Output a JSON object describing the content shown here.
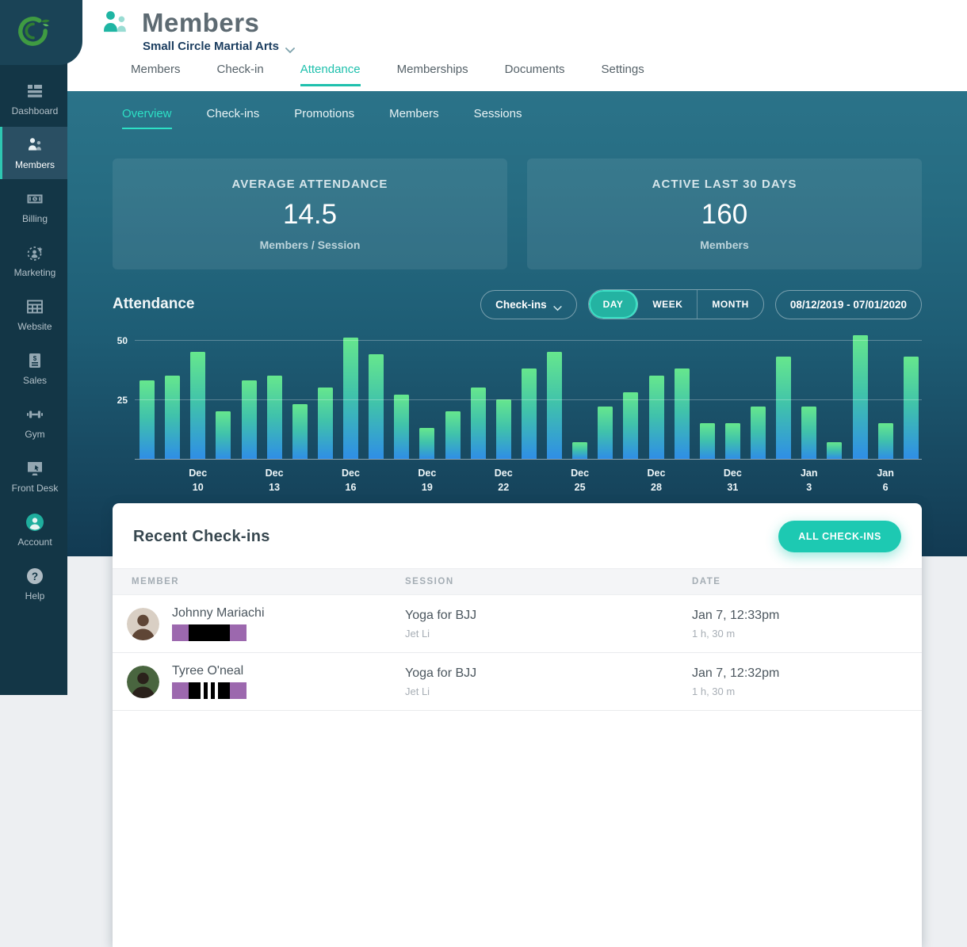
{
  "colors": {
    "accent_teal": "#1fc0ad",
    "button_teal": "#1dc9b2",
    "sidebar_bg": "#133646",
    "belt_purple": "#9c68ae",
    "bar_gradient": [
      "#66e78d",
      "#40c2ab",
      "#2f8ee6"
    ]
  },
  "sidebar": {
    "items": [
      {
        "label": "Dashboard",
        "icon": "dashboard-icon",
        "active": false
      },
      {
        "label": "Members",
        "icon": "members-icon",
        "active": true
      },
      {
        "label": "Billing",
        "icon": "billing-icon",
        "active": false
      },
      {
        "label": "Marketing",
        "icon": "marketing-icon",
        "active": false
      },
      {
        "label": "Website",
        "icon": "website-icon",
        "active": false
      },
      {
        "label": "Sales",
        "icon": "sales-icon",
        "active": false
      },
      {
        "label": "Gym",
        "icon": "gym-icon",
        "active": false
      },
      {
        "label": "Front Desk",
        "icon": "front-desk-icon",
        "active": false
      },
      {
        "label": "Account",
        "icon": "account-icon",
        "active": false
      },
      {
        "label": "Help",
        "icon": "help-icon",
        "active": false
      }
    ]
  },
  "header": {
    "title": "Members",
    "subtitle": "Small Circle Martial Arts",
    "tabs": [
      {
        "label": "Members",
        "active": false
      },
      {
        "label": "Check-in",
        "active": false
      },
      {
        "label": "Attendance",
        "active": true
      },
      {
        "label": "Memberships",
        "active": false
      },
      {
        "label": "Documents",
        "active": false
      },
      {
        "label": "Settings",
        "active": false
      }
    ]
  },
  "subtabs": [
    {
      "label": "Overview",
      "active": true
    },
    {
      "label": "Check-ins",
      "active": false
    },
    {
      "label": "Promotions",
      "active": false
    },
    {
      "label": "Members",
      "active": false
    },
    {
      "label": "Sessions",
      "active": false
    }
  ],
  "stats": [
    {
      "label": "AVERAGE ATTENDANCE",
      "value": "14.5",
      "unit": "Members / Session"
    },
    {
      "label": "ACTIVE LAST 30 DAYS",
      "value": "160",
      "unit": "Members"
    }
  ],
  "attendance_section": {
    "title": "Attendance",
    "metric_dropdown": "Check-ins",
    "periods": [
      "DAY",
      "WEEK",
      "MONTH"
    ],
    "active_period": "DAY",
    "date_range": "08/12/2019 - 07/01/2020"
  },
  "chart_data": {
    "type": "bar",
    "title": "Attendance — daily check-ins",
    "x": [
      "Dec 8",
      "Dec 9",
      "Dec 10",
      "Dec 11",
      "Dec 12",
      "Dec 13",
      "Dec 14",
      "Dec 15",
      "Dec 16",
      "Dec 17",
      "Dec 18",
      "Dec 19",
      "Dec 20",
      "Dec 21",
      "Dec 22",
      "Dec 23",
      "Dec 24",
      "Dec 25",
      "Dec 26",
      "Dec 27",
      "Dec 28",
      "Dec 29",
      "Dec 30",
      "Dec 31",
      "Jan 1",
      "Jan 2",
      "Jan 3",
      "Jan 4",
      "Jan 5",
      "Jan 6",
      "Jan 7"
    ],
    "values": [
      33,
      35,
      45,
      20,
      33,
      35,
      23,
      30,
      51,
      44,
      27,
      13,
      20,
      30,
      25,
      38,
      45,
      7,
      22,
      28,
      35,
      38,
      15,
      15,
      22,
      43,
      22,
      7,
      52,
      15,
      43
    ],
    "ticks": [
      {
        "i": 2,
        "label": "Dec\n10"
      },
      {
        "i": 5,
        "label": "Dec\n13"
      },
      {
        "i": 8,
        "label": "Dec\n16"
      },
      {
        "i": 11,
        "label": "Dec\n19"
      },
      {
        "i": 14,
        "label": "Dec\n22"
      },
      {
        "i": 17,
        "label": "Dec\n25"
      },
      {
        "i": 20,
        "label": "Dec\n28"
      },
      {
        "i": 23,
        "label": "Dec\n31"
      },
      {
        "i": 26,
        "label": "Jan 3"
      },
      {
        "i": 29,
        "label": "Jan 6"
      }
    ],
    "ylabel": "",
    "xlabel": "",
    "ylim": [
      0,
      55
    ],
    "yticks": [
      25,
      50
    ],
    "grid": true,
    "legend": false
  },
  "checkins": {
    "title": "Recent Check-ins",
    "button_label": "ALL CHECK-INS",
    "columns": [
      "MEMBER",
      "SESSION",
      "DATE"
    ],
    "rows": [
      {
        "name": "Johnny Mariachi",
        "belt_rank": "purple",
        "belt_stripes": 0,
        "session": "Yoga for BJJ",
        "instructor": "Jet Li",
        "date": "Jan 7, 12:33pm",
        "duration": "1 h, 30 m",
        "avatar_bg": "#d9cfc4",
        "avatar_fg": "#5f4636"
      },
      {
        "name": "Tyree O'neal",
        "belt_rank": "purple",
        "belt_stripes": 3,
        "session": "Yoga for BJJ",
        "instructor": "Jet Li",
        "date": "Jan 7, 12:32pm",
        "duration": "1 h, 30 m",
        "avatar_bg": "#49653f",
        "avatar_fg": "#2a211b"
      }
    ]
  }
}
